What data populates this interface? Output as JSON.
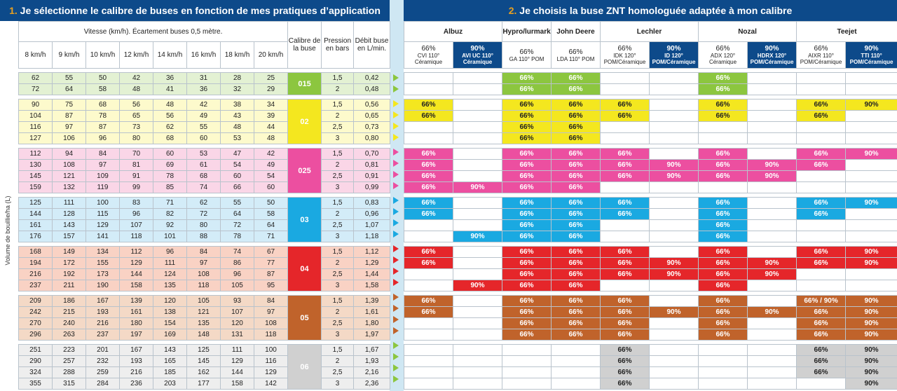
{
  "headers": {
    "left_num": "1.",
    "left_text": " Je sélectionne le calibre de buses en fonction de mes pratiques d’application",
    "right_num": "2.",
    "right_text": " Je choisis la buse ZNT homologuée adaptée à mon calibre"
  },
  "vertical_label": "Volume de bouillie/ha (L)",
  "left_cols": {
    "speed_title": "Vitesse (km/h). Écartement buses 0,5 mètre.",
    "speeds": [
      "8 km/h",
      "9 km/h",
      "10 km/h",
      "12 km/h",
      "14 km/h",
      "16 km/h",
      "18 km/h",
      "20 km/h"
    ],
    "calibre": "Calibre de la buse",
    "pression": "Pression en bars",
    "debit": "Débit buse en L/min."
  },
  "brands": [
    "Albuz",
    "Hypro/lurmark",
    "John Deere",
    "Lechler",
    "Nozal",
    "Teejet"
  ],
  "nozzles": [
    {
      "pct": "66%",
      "name": "CVI 110° Céramique",
      "dark": false
    },
    {
      "pct": "90%",
      "name": "AVI UC 110° Céramique",
      "dark": true
    },
    {
      "pct": "66%",
      "name": "GA 110° POM",
      "dark": false
    },
    {
      "pct": "66%",
      "name": "LDA 110° POM",
      "dark": false
    },
    {
      "pct": "66%",
      "name": "IDK 120° POM/Céramique",
      "dark": false
    },
    {
      "pct": "90%",
      "name": "ID 120° POM/Céramique",
      "dark": true
    },
    {
      "pct": "66%",
      "name": "ADX 120° Céramique",
      "dark": false
    },
    {
      "pct": "90%",
      "name": "HDRX 120° POM/Céramique",
      "dark": true
    },
    {
      "pct": "66%",
      "name": "AIXR 110° POM/Céramique",
      "dark": false
    },
    {
      "pct": "90%",
      "name": "TTI 110° POM/Céramique",
      "dark": true
    }
  ],
  "groups": [
    {
      "calibre": "015",
      "color": "#8cc63f",
      "light": "#e3f1d3",
      "arrow": "#8cc63f",
      "rows": [
        {
          "v": [
            "62",
            "55",
            "50",
            "42",
            "36",
            "31",
            "28",
            "25"
          ],
          "p": "1,5",
          "d": "0,42",
          "n": [
            "",
            "",
            "66%",
            "66%",
            "",
            "",
            "66%",
            "",
            "",
            ""
          ]
        },
        {
          "v": [
            "72",
            "64",
            "58",
            "48",
            "41",
            "36",
            "32",
            "29"
          ],
          "p": "2",
          "d": "0,48",
          "n": [
            "",
            "",
            "66%",
            "66%",
            "",
            "",
            "66%",
            "",
            "",
            ""
          ]
        }
      ]
    },
    {
      "calibre": "02",
      "color": "#f4e71f",
      "light": "#fdfacc",
      "arrow": "#f4e71f",
      "rows": [
        {
          "v": [
            "90",
            "75",
            "68",
            "56",
            "48",
            "42",
            "38",
            "34"
          ],
          "p": "1,5",
          "d": "0,56",
          "n": [
            "66%",
            "",
            "66%",
            "66%",
            "66%",
            "",
            "66%",
            "",
            "66%",
            "90%"
          ]
        },
        {
          "v": [
            "104",
            "87",
            "78",
            "65",
            "56",
            "49",
            "43",
            "39"
          ],
          "p": "2",
          "d": "0,65",
          "n": [
            "66%",
            "",
            "66%",
            "66%",
            "66%",
            "",
            "66%",
            "",
            "66%",
            ""
          ]
        },
        {
          "v": [
            "116",
            "97",
            "87",
            "73",
            "62",
            "55",
            "48",
            "44"
          ],
          "p": "2,5",
          "d": "0,73",
          "n": [
            "",
            "",
            "66%",
            "66%",
            "",
            "",
            "",
            "",
            "",
            ""
          ]
        },
        {
          "v": [
            "127",
            "106",
            "96",
            "80",
            "68",
            "60",
            "53",
            "48"
          ],
          "p": "3",
          "d": "0,80",
          "n": [
            "",
            "",
            "66%",
            "66%",
            "",
            "",
            "",
            "",
            "",
            ""
          ]
        }
      ]
    },
    {
      "calibre": "025",
      "color": "#ec4fa0",
      "light": "#fad6e7",
      "arrow": "#ec4fa0",
      "rows": [
        {
          "v": [
            "112",
            "94",
            "84",
            "70",
            "60",
            "53",
            "47",
            "42"
          ],
          "p": "1,5",
          "d": "0,70",
          "n": [
            "66%",
            "",
            "66%",
            "66%",
            "66%",
            "",
            "66%",
            "",
            "66%",
            "90%"
          ]
        },
        {
          "v": [
            "130",
            "108",
            "97",
            "81",
            "69",
            "61",
            "54",
            "49"
          ],
          "p": "2",
          "d": "0,81",
          "n": [
            "66%",
            "",
            "66%",
            "66%",
            "66%",
            "90%",
            "66%",
            "90%",
            "66%",
            ""
          ]
        },
        {
          "v": [
            "145",
            "121",
            "109",
            "91",
            "78",
            "68",
            "60",
            "54"
          ],
          "p": "2,5",
          "d": "0,91",
          "n": [
            "66%",
            "",
            "66%",
            "66%",
            "66%",
            "90%",
            "66%",
            "90%",
            "",
            ""
          ]
        },
        {
          "v": [
            "159",
            "132",
            "119",
            "99",
            "85",
            "74",
            "66",
            "60"
          ],
          "p": "3",
          "d": "0,99",
          "n": [
            "66%",
            "90%",
            "66%",
            "66%",
            "",
            "",
            "",
            "",
            "",
            ""
          ]
        }
      ]
    },
    {
      "calibre": "03",
      "color": "#1aa9e1",
      "light": "#d3ecf8",
      "arrow": "#1aa9e1",
      "rows": [
        {
          "v": [
            "125",
            "111",
            "100",
            "83",
            "71",
            "62",
            "55",
            "50"
          ],
          "p": "1,5",
          "d": "0,83",
          "n": [
            "66%",
            "",
            "66%",
            "66%",
            "66%",
            "",
            "66%",
            "",
            "66%",
            "90%"
          ]
        },
        {
          "v": [
            "144",
            "128",
            "115",
            "96",
            "82",
            "72",
            "64",
            "58"
          ],
          "p": "2",
          "d": "0,96",
          "n": [
            "66%",
            "",
            "66%",
            "66%",
            "66%",
            "",
            "66%",
            "",
            "66%",
            ""
          ]
        },
        {
          "v": [
            "161",
            "143",
            "129",
            "107",
            "92",
            "80",
            "72",
            "64"
          ],
          "p": "2,5",
          "d": "1,07",
          "n": [
            "",
            "",
            "66%",
            "66%",
            "",
            "",
            "66%",
            "",
            "",
            ""
          ]
        },
        {
          "v": [
            "176",
            "157",
            "141",
            "118",
            "101",
            "88",
            "78",
            "71"
          ],
          "p": "3",
          "d": "1,18",
          "n": [
            "",
            "90%",
            "66%",
            "66%",
            "",
            "",
            "66%",
            "",
            "",
            ""
          ]
        }
      ]
    },
    {
      "calibre": "04",
      "color": "#e5262a",
      "light": "#f9d2c4",
      "arrow": "#e5262a",
      "rows": [
        {
          "v": [
            "168",
            "149",
            "134",
            "112",
            "96",
            "84",
            "74",
            "67"
          ],
          "p": "1,5",
          "d": "1,12",
          "n": [
            "66%",
            "",
            "66%",
            "66%",
            "66%",
            "",
            "66%",
            "",
            "66%",
            "90%"
          ]
        },
        {
          "v": [
            "194",
            "172",
            "155",
            "129",
            "111",
            "97",
            "86",
            "77"
          ],
          "p": "2",
          "d": "1,29",
          "n": [
            "66%",
            "",
            "66%",
            "66%",
            "66%",
            "90%",
            "66%",
            "90%",
            "66%",
            "90%"
          ]
        },
        {
          "v": [
            "216",
            "192",
            "173",
            "144",
            "124",
            "108",
            "96",
            "87"
          ],
          "p": "2,5",
          "d": "1,44",
          "n": [
            "",
            "",
            "66%",
            "66%",
            "66%",
            "90%",
            "66%",
            "90%",
            "",
            ""
          ]
        },
        {
          "v": [
            "237",
            "211",
            "190",
            "158",
            "135",
            "118",
            "105",
            "95"
          ],
          "p": "3",
          "d": "1,58",
          "n": [
            "",
            "90%",
            "66%",
            "66%",
            "",
            "",
            "66%",
            "",
            "",
            ""
          ]
        }
      ]
    },
    {
      "calibre": "05",
      "color": "#c0632b",
      "light": "#f4d9c6",
      "arrow": "#c0632b",
      "rows": [
        {
          "v": [
            "209",
            "186",
            "167",
            "139",
            "120",
            "105",
            "93",
            "84"
          ],
          "p": "1,5",
          "d": "1,39",
          "n": [
            "66%",
            "",
            "66%",
            "66%",
            "66%",
            "",
            "66%",
            "",
            "66% / 90%",
            "90%"
          ]
        },
        {
          "v": [
            "242",
            "215",
            "193",
            "161",
            "138",
            "121",
            "107",
            "97"
          ],
          "p": "2",
          "d": "1,61",
          "n": [
            "66%",
            "",
            "66%",
            "66%",
            "66%",
            "90%",
            "66%",
            "90%",
            "66%",
            "90%"
          ]
        },
        {
          "v": [
            "270",
            "240",
            "216",
            "180",
            "154",
            "135",
            "120",
            "108"
          ],
          "p": "2,5",
          "d": "1,80",
          "n": [
            "",
            "",
            "66%",
            "66%",
            "66%",
            "",
            "66%",
            "",
            "66%",
            "90%"
          ]
        },
        {
          "v": [
            "296",
            "263",
            "237",
            "197",
            "169",
            "148",
            "131",
            "118"
          ],
          "p": "3",
          "d": "1,97",
          "n": [
            "",
            "",
            "66%",
            "66%",
            "66%",
            "",
            "66%",
            "",
            "66%",
            "90%"
          ]
        }
      ]
    },
    {
      "calibre": "06",
      "color": "#d0d0d0",
      "light": "#eeeeee",
      "arrow": "#8cc63f",
      "rows": [
        {
          "v": [
            "251",
            "223",
            "201",
            "167",
            "143",
            "125",
            "111",
            "100"
          ],
          "p": "1,5",
          "d": "1,67",
          "n": [
            "",
            "",
            "",
            "",
            "66%",
            "",
            "",
            "",
            "66%",
            "90%"
          ]
        },
        {
          "v": [
            "290",
            "257",
            "232",
            "193",
            "165",
            "145",
            "129",
            "116"
          ],
          "p": "2",
          "d": "1,93",
          "n": [
            "",
            "",
            "",
            "",
            "66%",
            "",
            "",
            "",
            "66%",
            "90%"
          ]
        },
        {
          "v": [
            "324",
            "288",
            "259",
            "216",
            "185",
            "162",
            "144",
            "129"
          ],
          "p": "2,5",
          "d": "2,16",
          "n": [
            "",
            "",
            "",
            "",
            "66%",
            "",
            "",
            "",
            "66%",
            "90%"
          ]
        },
        {
          "v": [
            "355",
            "315",
            "284",
            "236",
            "203",
            "177",
            "158",
            "142"
          ],
          "p": "3",
          "d": "2,36",
          "n": [
            "",
            "",
            "",
            "",
            "66%",
            "",
            "",
            "",
            "",
            "90%"
          ]
        }
      ]
    }
  ]
}
